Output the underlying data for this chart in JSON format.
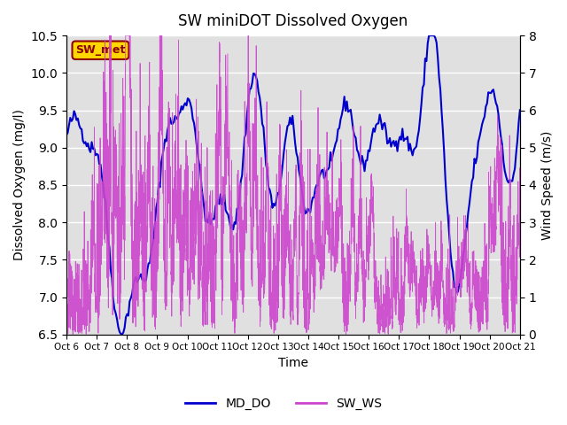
{
  "title": "SW miniDOT Dissolved Oxygen",
  "xlabel": "Time",
  "ylabel_left": "Dissolved Oxygen (mg/l)",
  "ylabel_right": "Wind Speed (m/s)",
  "annotation_text": "SW_met",
  "annotation_color": "#8B0000",
  "annotation_bg": "#FFD700",
  "ylim_left": [
    6.5,
    10.5
  ],
  "ylim_right": [
    0.0,
    8.0
  ],
  "yticks_left": [
    6.5,
    7.0,
    7.5,
    8.0,
    8.5,
    9.0,
    9.5,
    10.0,
    10.5
  ],
  "yticks_right": [
    0.0,
    1.0,
    2.0,
    3.0,
    4.0,
    5.0,
    6.0,
    7.0,
    8.0
  ],
  "xtick_labels": [
    "Oct 6",
    "Oct 7",
    "Oct 8",
    "Oct 9",
    "Oct 10",
    "Oct 11",
    "Oct 12",
    "Oct 13",
    "Oct 14",
    "Oct 15",
    "Oct 16",
    "Oct 17",
    "Oct 18",
    "Oct 19",
    "Oct 20",
    "Oct 21"
  ],
  "line_do_color": "#0000CD",
  "line_ws_color": "#CC44CC",
  "legend_do": "MD_DO",
  "legend_ws": "SW_WS",
  "bg_color": "#E0E0E0",
  "grid_color": "white",
  "n_points_do": 360,
  "n_points_ws": 3000,
  "seed": 42
}
